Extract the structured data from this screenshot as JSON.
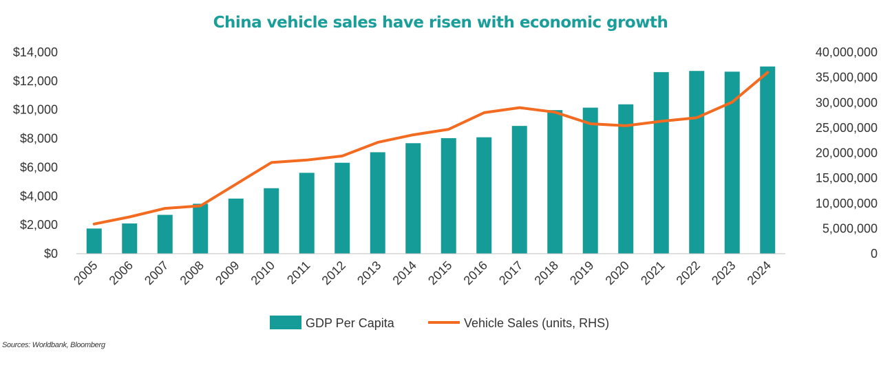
{
  "title": "China vehicle sales have risen with economic growth",
  "source": "Sources: Worldbank, Bloomberg",
  "colors": {
    "title": "#1a9e9a",
    "bar": "#159b98",
    "line": "#f26b21",
    "axis": "#bfbfbf",
    "text": "#333333"
  },
  "chart_data": {
    "type": "bar",
    "categories": [
      "2005",
      "2006",
      "2007",
      "2008",
      "2009",
      "2010",
      "2011",
      "2012",
      "2013",
      "2014",
      "2015",
      "2016",
      "2017",
      "2018",
      "2019",
      "2020",
      "2021",
      "2022",
      "2023",
      "2024"
    ],
    "series": [
      {
        "name": "GDP Per Capita",
        "type": "bar",
        "axis": "left",
        "values": [
          1750,
          2100,
          2700,
          3470,
          3830,
          4550,
          5620,
          6320,
          7050,
          7680,
          8030,
          8090,
          8880,
          9980,
          10150,
          10380,
          12620,
          12700,
          12650,
          13010
        ]
      },
      {
        "name": "Vehicle Sales (units, RHS)",
        "type": "line",
        "axis": "right",
        "values": [
          5900000,
          7300000,
          9000000,
          9500000,
          13800000,
          18100000,
          18600000,
          19400000,
          22100000,
          23600000,
          24700000,
          28000000,
          29000000,
          28100000,
          25800000,
          25400000,
          26300000,
          27000000,
          30100000,
          36000000
        ]
      }
    ],
    "left_axis": {
      "min": 0,
      "max": 14000,
      "ticks": [
        "$0",
        "$2,000",
        "$4,000",
        "$6,000",
        "$8,000",
        "$10,000",
        "$12,000",
        "$14,000"
      ]
    },
    "right_axis": {
      "min": 0,
      "max": 40000000,
      "ticks": [
        "0",
        "5,000,000",
        "10,000,000",
        "15,000,000",
        "20,000,000",
        "25,000,000",
        "30,000,000",
        "35,000,000",
        "40,000,000"
      ]
    },
    "grid": false,
    "legend_position": "bottom"
  }
}
